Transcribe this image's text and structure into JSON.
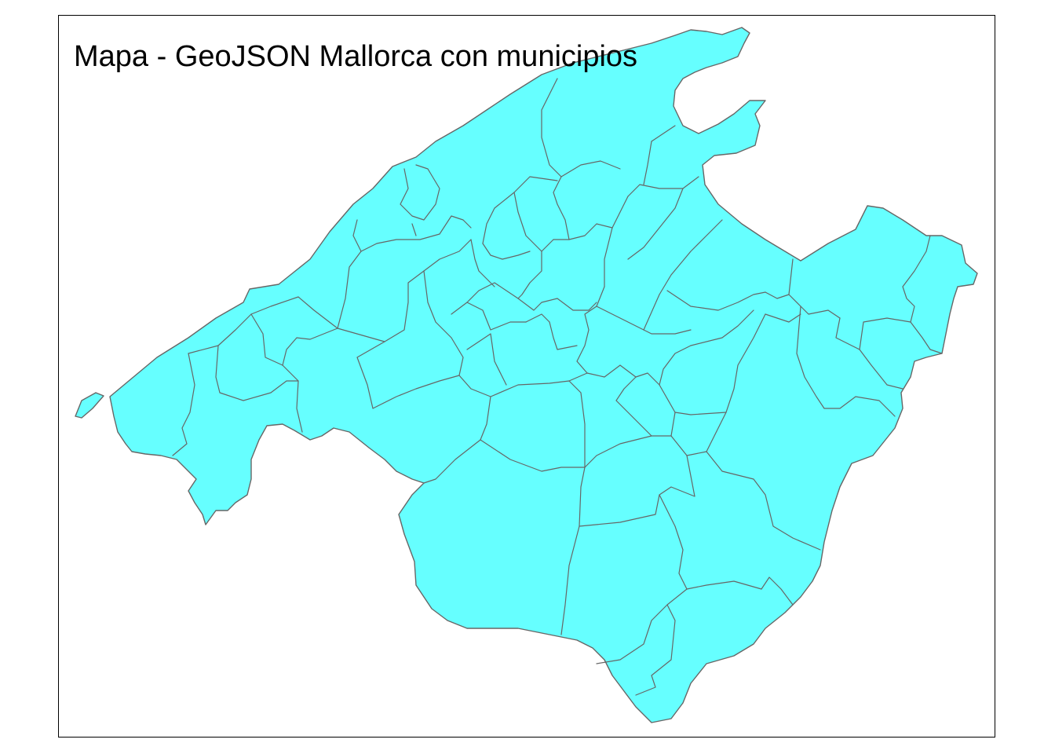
{
  "map": {
    "title": "Mapa - GeoJSON Mallorca con municipios",
    "fill_color": "#66FFFF",
    "border_color": "#666666",
    "frame_color": "#000000",
    "background": "#FFFFFF"
  }
}
